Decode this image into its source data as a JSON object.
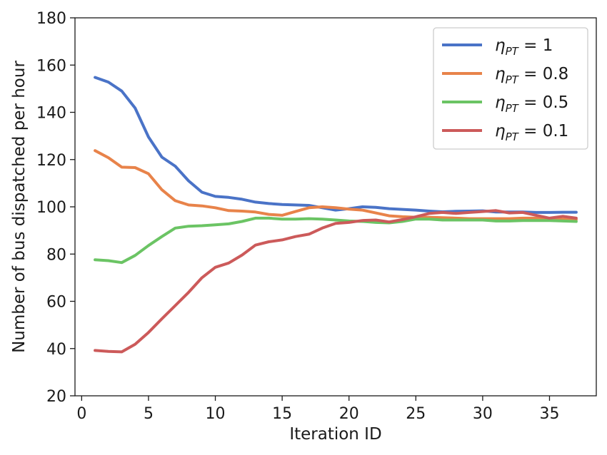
{
  "chart_data": {
    "type": "line",
    "title": "",
    "xlabel": "Iteration ID",
    "ylabel": "Number of bus dispatched per hour",
    "xlim": [
      -0.5,
      38.5
    ],
    "ylim": [
      20,
      180
    ],
    "xticks": [
      0,
      5,
      10,
      15,
      20,
      25,
      30,
      35
    ],
    "yticks": [
      20,
      40,
      60,
      80,
      100,
      120,
      140,
      160,
      180
    ],
    "grid": false,
    "legend_position": "top-right",
    "x": [
      1,
      2,
      3,
      4,
      5,
      6,
      7,
      8,
      9,
      10,
      11,
      12,
      13,
      14,
      15,
      16,
      17,
      18,
      19,
      20,
      21,
      22,
      23,
      24,
      25,
      26,
      27,
      28,
      29,
      30,
      31,
      32,
      33,
      34,
      35,
      36,
      37
    ],
    "series": [
      {
        "name": "η_PT = 1",
        "label_main": "η",
        "label_sub": "PT",
        "label_rest": " = 1",
        "color": "#4a73c7",
        "values": [
          154.8,
          152.8,
          149.0,
          141.8,
          129.6,
          121.0,
          117.2,
          111.0,
          106.2,
          104.4,
          104.0,
          103.2,
          102.0,
          101.4,
          101.0,
          100.8,
          100.6,
          99.6,
          98.6,
          99.2,
          100.0,
          99.8,
          99.2,
          98.9,
          98.6,
          98.2,
          97.9,
          98.1,
          98.2,
          98.3,
          97.8,
          97.8,
          97.8,
          97.6,
          97.6,
          97.7,
          97.7
        ]
      },
      {
        "name": "η_PT = 0.8",
        "label_main": "η",
        "label_sub": "PT",
        "label_rest": " = 0.8",
        "color": "#e8834a",
        "values": [
          123.8,
          120.8,
          116.8,
          116.6,
          114.0,
          107.2,
          102.6,
          100.8,
          100.4,
          99.6,
          98.4,
          98.2,
          97.8,
          96.8,
          96.4,
          98.0,
          99.6,
          100.0,
          99.6,
          99.0,
          98.6,
          97.4,
          96.2,
          95.8,
          95.6,
          95.6,
          95.4,
          95.2,
          95.0,
          95.0,
          95.0,
          95.0,
          95.2,
          95.2,
          95.0,
          94.8,
          94.6
        ]
      },
      {
        "name": "η_PT = 0.5",
        "label_main": "η",
        "label_sub": "PT",
        "label_rest": " = 0.5",
        "color": "#6bc464",
        "values": [
          77.6,
          77.2,
          76.4,
          79.4,
          83.6,
          87.4,
          91.0,
          91.8,
          92.0,
          92.4,
          92.8,
          93.8,
          95.2,
          95.2,
          94.8,
          94.8,
          95.0,
          94.8,
          94.4,
          94.0,
          93.8,
          93.4,
          93.2,
          93.8,
          94.8,
          94.8,
          94.4,
          94.4,
          94.4,
          94.4,
          94.0,
          94.0,
          94.2,
          94.2,
          94.2,
          94.0,
          93.8
        ]
      },
      {
        "name": "η_PT = 0.1",
        "label_main": "η",
        "label_sub": "PT",
        "label_rest": " = 0.1",
        "color": "#cc5a5a",
        "values": [
          39.2,
          38.8,
          38.6,
          41.8,
          46.8,
          52.6,
          58.2,
          63.8,
          70.0,
          74.4,
          76.2,
          79.6,
          83.8,
          85.2,
          86.0,
          87.4,
          88.4,
          91.0,
          93.0,
          93.4,
          94.2,
          94.4,
          93.6,
          94.6,
          95.8,
          97.2,
          97.6,
          97.2,
          97.6,
          98.0,
          98.4,
          97.4,
          97.6,
          96.4,
          95.2,
          96.0,
          95.2
        ]
      }
    ]
  }
}
